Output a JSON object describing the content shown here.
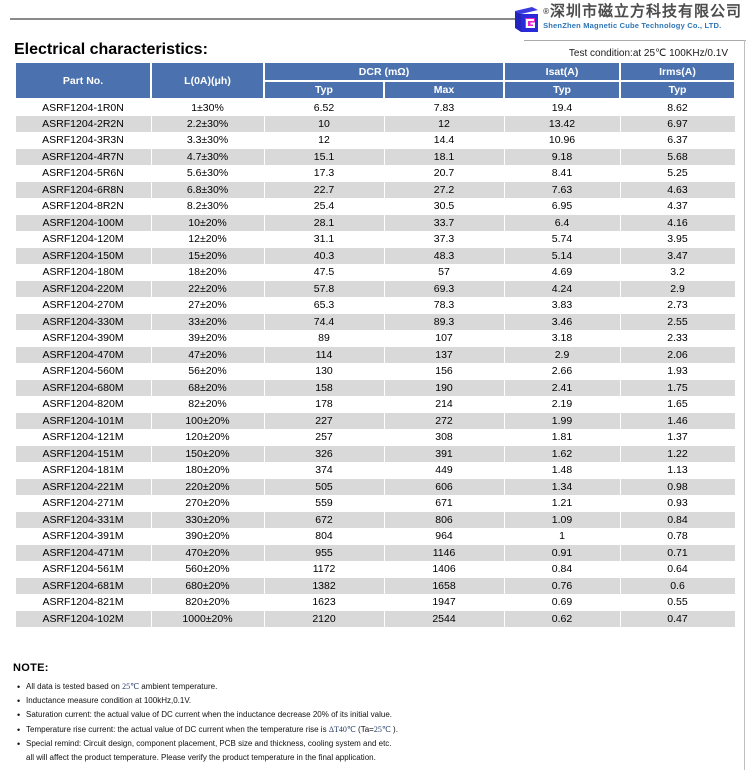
{
  "header": {
    "company_reg_mark": "®",
    "company_name_cn": "深圳市磁立方科技有限公司",
    "company_name_en": "ShenZhen Magnetic Cube Technology Co., LTD."
  },
  "title": "Electrical characteristics:",
  "test_condition": "Test condition:at 25℃ 100KHz/0.1V",
  "table": {
    "headers": {
      "part_no": "Part No.",
      "inductance": "L(0A)(μh)",
      "dcr": "DCR (mΩ)",
      "dcr_typ": "Typ",
      "dcr_max": "Max",
      "isat": "Isat(A)",
      "isat_typ": "Typ",
      "irms": "Irms(A)",
      "irms_typ": "Typ"
    },
    "rows": [
      [
        "ASRF1204-1R0N",
        "1±30%",
        "6.52",
        "7.83",
        "19.4",
        "8.62"
      ],
      [
        "ASRF1204-2R2N",
        "2.2±30%",
        "10",
        "12",
        "13.42",
        "6.97"
      ],
      [
        "ASRF1204-3R3N",
        "3.3±30%",
        "12",
        "14.4",
        "10.96",
        "6.37"
      ],
      [
        "ASRF1204-4R7N",
        "4.7±30%",
        "15.1",
        "18.1",
        "9.18",
        "5.68"
      ],
      [
        "ASRF1204-5R6N",
        "5.6±30%",
        "17.3",
        "20.7",
        "8.41",
        "5.25"
      ],
      [
        "ASRF1204-6R8N",
        "6.8±30%",
        "22.7",
        "27.2",
        "7.63",
        "4.63"
      ],
      [
        "ASRF1204-8R2N",
        "8.2±30%",
        "25.4",
        "30.5",
        "6.95",
        "4.37"
      ],
      [
        "ASRF1204-100M",
        "10±20%",
        "28.1",
        "33.7",
        "6.4",
        "4.16"
      ],
      [
        "ASRF1204-120M",
        "12±20%",
        "31.1",
        "37.3",
        "5.74",
        "3.95"
      ],
      [
        "ASRF1204-150M",
        "15±20%",
        "40.3",
        "48.3",
        "5.14",
        "3.47"
      ],
      [
        "ASRF1204-180M",
        "18±20%",
        "47.5",
        "57",
        "4.69",
        "3.2"
      ],
      [
        "ASRF1204-220M",
        "22±20%",
        "57.8",
        "69.3",
        "4.24",
        "2.9"
      ],
      [
        "ASRF1204-270M",
        "27±20%",
        "65.3",
        "78.3",
        "3.83",
        "2.73"
      ],
      [
        "ASRF1204-330M",
        "33±20%",
        "74.4",
        "89.3",
        "3.46",
        "2.55"
      ],
      [
        "ASRF1204-390M",
        "39±20%",
        "89",
        "107",
        "3.18",
        "2.33"
      ],
      [
        "ASRF1204-470M",
        "47±20%",
        "114",
        "137",
        "2.9",
        "2.06"
      ],
      [
        "ASRF1204-560M",
        "56±20%",
        "130",
        "156",
        "2.66",
        "1.93"
      ],
      [
        "ASRF1204-680M",
        "68±20%",
        "158",
        "190",
        "2.41",
        "1.75"
      ],
      [
        "ASRF1204-820M",
        "82±20%",
        "178",
        "214",
        "2.19",
        "1.65"
      ],
      [
        "ASRF1204-101M",
        "100±20%",
        "227",
        "272",
        "1.99",
        "1.46"
      ],
      [
        "ASRF1204-121M",
        "120±20%",
        "257",
        "308",
        "1.81",
        "1.37"
      ],
      [
        "ASRF1204-151M",
        "150±20%",
        "326",
        "391",
        "1.62",
        "1.22"
      ],
      [
        "ASRF1204-181M",
        "180±20%",
        "374",
        "449",
        "1.48",
        "1.13"
      ],
      [
        "ASRF1204-221M",
        "220±20%",
        "505",
        "606",
        "1.34",
        "0.98"
      ],
      [
        "ASRF1204-271M",
        "270±20%",
        "559",
        "671",
        "1.21",
        "0.93"
      ],
      [
        "ASRF1204-331M",
        "330±20%",
        "672",
        "806",
        "1.09",
        "0.84"
      ],
      [
        "ASRF1204-391M",
        "390±20%",
        "804",
        "964",
        "1",
        "0.78"
      ],
      [
        "ASRF1204-471M",
        "470±20%",
        "955",
        "1146",
        "0.91",
        "0.71"
      ],
      [
        "ASRF1204-561M",
        "560±20%",
        "1172",
        "1406",
        "0.84",
        "0.64"
      ],
      [
        "ASRF1204-681M",
        "680±20%",
        "1382",
        "1658",
        "0.76",
        "0.6"
      ],
      [
        "ASRF1204-821M",
        "820±20%",
        "1623",
        "1947",
        "0.69",
        "0.55"
      ],
      [
        "ASRF1204-102M",
        "1000±20%",
        "2120",
        "2544",
        "0.62",
        "0.47"
      ]
    ]
  },
  "note": {
    "heading": "NOTE:",
    "items": [
      {
        "segments": [
          {
            "t": "All data is tested based on "
          },
          {
            "t": "25℃",
            "accent": true
          },
          {
            "t": " ambient temperature."
          }
        ]
      },
      {
        "segments": [
          {
            "t": "Inductance measure condition at 100kHz,0.1V."
          }
        ]
      },
      {
        "segments": [
          {
            "t": "Saturation current: the actual value of DC current when the inductance decrease 20% of its initial value."
          }
        ]
      },
      {
        "segments": [
          {
            "t": "Temperature rise current: the actual value of DC current when the temperature rise is "
          },
          {
            "t": "ΔT40℃",
            "accent": true
          },
          {
            "t": " (Ta="
          },
          {
            "t": "25℃",
            "accent": true
          },
          {
            "t": " )."
          }
        ]
      },
      {
        "segments": [
          {
            "t": "Special remind: Circuit design, component placement, PCB size and thickness, cooling system and etc.\nall will affect the product temperature. Please verify the product temperature in the final application."
          }
        ]
      }
    ]
  },
  "colors": {
    "header_blue": "#4b72ae",
    "alt_row_gray": "#d9d9d9",
    "accent_navy": "#1f3864",
    "company_en_blue": "#2e75b6",
    "logo_blue": "#2a2ad8",
    "logo_magenta": "#ee22cc",
    "rule_gray": "#8a8a8a"
  }
}
